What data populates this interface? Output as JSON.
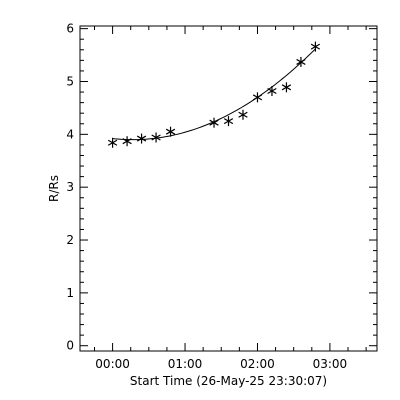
{
  "chart_data": {
    "type": "scatter",
    "xlabel": "Start Time (26-May-25 23:30:07)",
    "ylabel": "R/Rs",
    "xlim": [
      -0.45,
      3.65
    ],
    "ylim": [
      -0.1,
      6.05
    ],
    "x_ticks": [
      {
        "value": 0,
        "label": "00:00"
      },
      {
        "value": 1,
        "label": "01:00"
      },
      {
        "value": 2,
        "label": "02:00"
      },
      {
        "value": 3,
        "label": "03:00"
      }
    ],
    "x_minor_step": 0.25,
    "y_ticks": [
      {
        "value": 0,
        "label": "0"
      },
      {
        "value": 1,
        "label": "1"
      },
      {
        "value": 2,
        "label": "2"
      },
      {
        "value": 3,
        "label": "3"
      },
      {
        "value": 4,
        "label": "4"
      },
      {
        "value": 5,
        "label": "5"
      },
      {
        "value": 6,
        "label": "6"
      }
    ],
    "y_minor_step": 0.2,
    "marker": "asterisk",
    "series": [
      {
        "points": [
          {
            "x": 0.0,
            "y": 3.84
          },
          {
            "x": 0.2,
            "y": 3.87
          },
          {
            "x": 0.4,
            "y": 3.92
          },
          {
            "x": 0.6,
            "y": 3.94
          },
          {
            "x": 0.8,
            "y": 4.05
          },
          {
            "x": 1.4,
            "y": 4.22
          },
          {
            "x": 1.6,
            "y": 4.25
          },
          {
            "x": 1.8,
            "y": 4.37
          },
          {
            "x": 2.0,
            "y": 4.7
          },
          {
            "x": 2.2,
            "y": 4.82
          },
          {
            "x": 2.4,
            "y": 4.89
          },
          {
            "x": 2.6,
            "y": 5.37
          },
          {
            "x": 2.8,
            "y": 5.66
          }
        ]
      }
    ],
    "fit": {
      "type": "quadratic",
      "coefficients": [
        3.92,
        -0.15,
        0.27
      ],
      "x_range": [
        0.0,
        2.8
      ]
    }
  }
}
